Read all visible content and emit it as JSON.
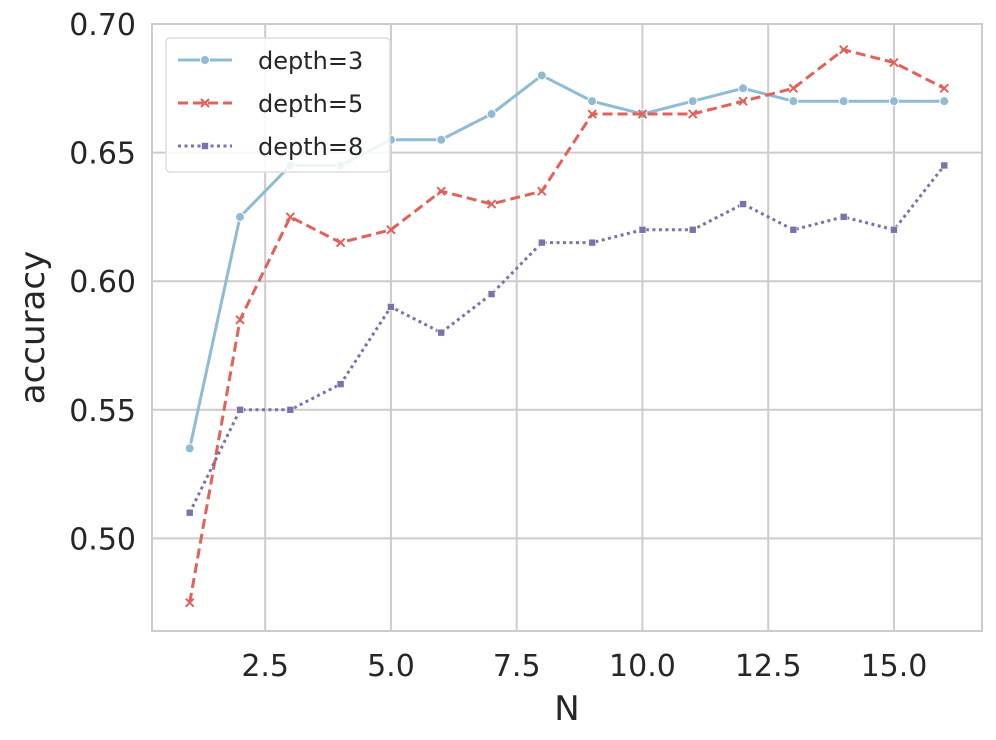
{
  "chart_data": {
    "type": "line",
    "title": "",
    "xlabel": "N",
    "ylabel": "accuracy",
    "xlim": [
      0.25,
      16.75
    ],
    "ylim": [
      0.464,
      0.7
    ],
    "xticks": [
      2.5,
      5.0,
      7.5,
      10.0,
      12.5,
      15.0
    ],
    "xtick_labels": [
      "2.5",
      "5.0",
      "7.5",
      "10.0",
      "12.5",
      "15.0"
    ],
    "yticks": [
      0.5,
      0.55,
      0.6,
      0.65,
      0.7
    ],
    "ytick_labels": [
      "0.50",
      "0.55",
      "0.60",
      "0.65",
      "0.70"
    ],
    "grid": true,
    "legend_position": "top-left",
    "x": [
      1,
      2,
      3,
      4,
      5,
      6,
      7,
      8,
      9,
      10,
      11,
      12,
      13,
      14,
      15,
      16
    ],
    "series": [
      {
        "name": "depth=3",
        "color": "#8fbcd4",
        "line_style": "solid",
        "marker": "circle",
        "values": [
          0.535,
          0.625,
          0.645,
          0.645,
          0.655,
          0.655,
          0.665,
          0.68,
          0.67,
          0.665,
          0.67,
          0.675,
          0.67,
          0.67,
          0.67,
          0.67
        ]
      },
      {
        "name": "depth=5",
        "color": "#e0625a",
        "line_style": "dashed",
        "marker": "x",
        "values": [
          0.475,
          0.585,
          0.625,
          0.615,
          0.62,
          0.635,
          0.63,
          0.635,
          0.665,
          0.665,
          0.665,
          0.67,
          0.675,
          0.69,
          0.685,
          0.675
        ]
      },
      {
        "name": "depth=8",
        "color": "#7b72aa",
        "line_style": "dotted",
        "marker": "square",
        "values": [
          0.51,
          0.55,
          0.55,
          0.56,
          0.59,
          0.58,
          0.595,
          0.615,
          0.615,
          0.62,
          0.62,
          0.63,
          0.62,
          0.625,
          0.62,
          0.645
        ]
      }
    ]
  }
}
